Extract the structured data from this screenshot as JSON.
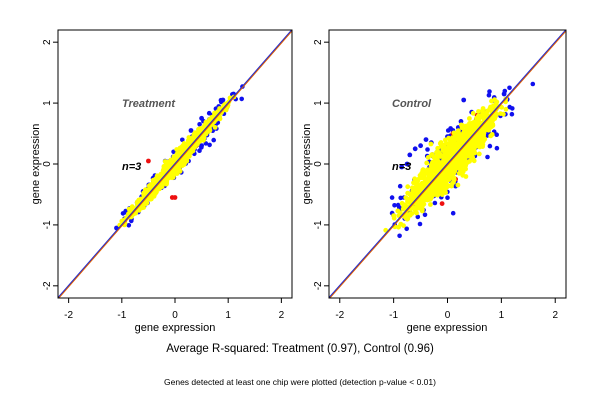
{
  "colors": {
    "background": "#ffffff",
    "frame": "#000000",
    "diagonal_line": "#e06000",
    "fit_line": "#1f2bd6",
    "points_all": "#1010ee",
    "points_mid": "#ee1010",
    "points_main": "#ffff00"
  },
  "captions": {
    "main": "Average R-squared: Treatment (0.97), Control (0.96)",
    "sub": "Genes detected at least one chip were plotted (detection p-value < 0.01)"
  },
  "chart_data": [
    {
      "type": "scatter",
      "title": "Treatment",
      "annotation": "n=3",
      "xlabel": "gene expression",
      "ylabel": "gene expression",
      "xlim": [
        -2.2,
        2.2
      ],
      "ylim": [
        -2.2,
        2.2
      ],
      "xticks": [
        -2,
        -1,
        0,
        1,
        2
      ],
      "yticks": [
        -2,
        -1,
        0,
        1,
        2
      ],
      "r_squared": 0.97,
      "reference_line": "y = x",
      "point_cloud": {
        "x_range": [
          -1.15,
          1.25
        ],
        "y_range": [
          -1.15,
          1.25
        ],
        "spread_sd": 0.05,
        "layers": [
          "blue",
          "red",
          "yellow"
        ]
      },
      "series": [
        {
          "color": "blue",
          "values": [
            [
              -1.1,
              -1.05
            ],
            [
              -0.95,
              -0.9
            ],
            [
              0.5,
              0.75
            ],
            [
              0.7,
              0.8
            ],
            [
              0.9,
              1.05
            ],
            [
              1.1,
              1.15
            ],
            [
              -0.6,
              -0.45
            ],
            [
              0.3,
              0.55
            ]
          ]
        },
        {
          "color": "red",
          "values": [
            [
              -0.5,
              0.05
            ],
            [
              -0.05,
              -0.55
            ],
            [
              0.4,
              0.3
            ],
            [
              0.7,
              0.68
            ],
            [
              -0.3,
              -0.4
            ],
            [
              0.0,
              -0.55
            ]
          ]
        }
      ]
    },
    {
      "type": "scatter",
      "title": "Control",
      "annotation": "n=3",
      "xlabel": "gene expression",
      "ylabel": "gene expression",
      "xlim": [
        -2.2,
        2.2
      ],
      "ylim": [
        -2.2,
        2.2
      ],
      "xticks": [
        -2,
        -1,
        0,
        1,
        2
      ],
      "yticks": [
        -2,
        -1,
        0,
        1,
        2
      ],
      "r_squared": 0.96,
      "reference_line": "y = x",
      "point_cloud": {
        "x_range": [
          -1.1,
          1.2
        ],
        "y_range": [
          -1.1,
          1.2
        ],
        "spread_sd": 0.13,
        "layers": [
          "blue",
          "red",
          "yellow"
        ]
      },
      "series": [
        {
          "color": "blue",
          "values": [
            [
              0.3,
              1.05
            ],
            [
              0.45,
              0.85
            ],
            [
              0.2,
              0.6
            ],
            [
              0.6,
              0.6
            ],
            [
              0.5,
              0.5
            ],
            [
              -0.4,
              0.4
            ],
            [
              -0.6,
              0.25
            ],
            [
              -0.7,
              0.15
            ],
            [
              -0.75,
              0.0
            ],
            [
              -0.85,
              -0.05
            ],
            [
              0.0,
              0.45
            ],
            [
              0.1,
              0.55
            ],
            [
              0.8,
              0.75
            ],
            [
              0.9,
              0.9
            ],
            [
              1.05,
              1.15
            ],
            [
              -0.5,
              0.3
            ],
            [
              -0.3,
              0.35
            ],
            [
              0.25,
              0.7
            ]
          ]
        },
        {
          "color": "red",
          "values": [
            [
              0.1,
              0.5
            ],
            [
              0.4,
              0.55
            ],
            [
              0.55,
              0.8
            ],
            [
              -0.1,
              -0.65
            ],
            [
              0.15,
              -0.25
            ]
          ]
        }
      ]
    }
  ]
}
